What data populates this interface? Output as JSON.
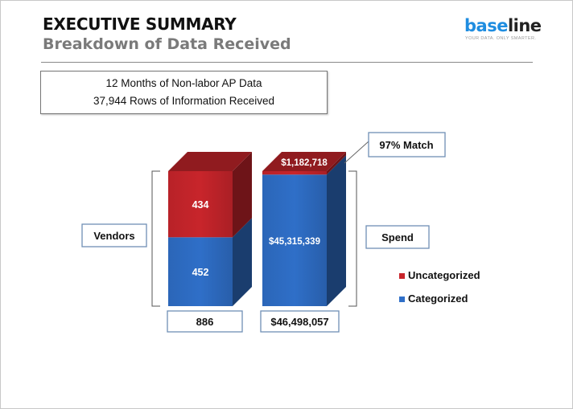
{
  "header": {
    "title": "EXECUTIVE SUMMARY",
    "subtitle": "Breakdown of Data Received"
  },
  "logo": {
    "part1": "base",
    "part2": "line",
    "tagline": "YOUR DATA. ONLY SMARTER."
  },
  "info": {
    "line1": "12 Months of Non-labor AP Data",
    "line2": "37,944 Rows of Information Received"
  },
  "colors": {
    "uncategorized": "#c8252b",
    "categorized": "#2f6fc8",
    "callout_border": "#6f8fb5"
  },
  "chart_data": {
    "type": "bar",
    "stacked": true,
    "normalized": true,
    "categories": [
      "Vendors",
      "Spend"
    ],
    "series": [
      {
        "name": "Categorized",
        "values": [
          452,
          45315339
        ],
        "labels": [
          "452",
          "$45,315,339"
        ]
      },
      {
        "name": "Uncategorized",
        "values": [
          434,
          1182718
        ],
        "labels": [
          "434",
          "$1,182,718"
        ]
      }
    ],
    "totals": [
      "886",
      "$46,498,057"
    ],
    "callout": "97% Match",
    "legend": [
      "Uncategorized",
      "Categorized"
    ],
    "legend_position": "right"
  }
}
